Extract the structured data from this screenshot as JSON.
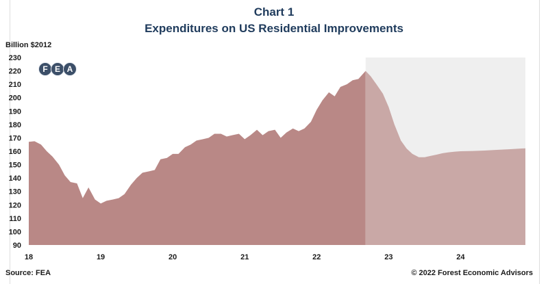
{
  "title": "Chart 1",
  "subtitle": "Expenditures on US Residential Improvements",
  "unit_label": "Billion $2012",
  "source": "Source: FEA",
  "copyright": "© 2022 Forest Economic Advisors",
  "logo": {
    "letters": [
      "F",
      "E",
      "A"
    ]
  },
  "colors": {
    "historical_area": "#b98886",
    "forecast_area": "#c9a8a6",
    "forecast_shade": "#efefef",
    "title": "#1f3b5c",
    "logo": "#3c4f68"
  },
  "chart_data": {
    "type": "area",
    "title": "Expenditures on US Residential Improvements",
    "ylabel": "Billion $2012",
    "ylim": [
      90,
      230
    ],
    "yticks": [
      90,
      100,
      110,
      120,
      130,
      140,
      150,
      160,
      170,
      180,
      190,
      200,
      210,
      220,
      230
    ],
    "xlim": [
      2018.0,
      2024.9
    ],
    "xticks": [
      {
        "value": 2018,
        "label": "18"
      },
      {
        "value": 2019,
        "label": "19"
      },
      {
        "value": 2020,
        "label": "20"
      },
      {
        "value": 2021,
        "label": "21"
      },
      {
        "value": 2022,
        "label": "22"
      },
      {
        "value": 2023,
        "label": "23"
      },
      {
        "value": 2024,
        "label": "24"
      }
    ],
    "forecast_start": 2022.68,
    "grid": false,
    "series": [
      {
        "x": [
          2018.0,
          2018.08,
          2018.17,
          2018.25,
          2018.33,
          2018.42,
          2018.5,
          2018.58,
          2018.67,
          2018.75,
          2018.83,
          2018.92,
          2019.0,
          2019.08,
          2019.17,
          2019.25,
          2019.33,
          2019.42,
          2019.5,
          2019.58,
          2019.67,
          2019.75,
          2019.83,
          2019.92,
          2020.0,
          2020.08,
          2020.17,
          2020.25,
          2020.33,
          2020.42,
          2020.5,
          2020.58,
          2020.67,
          2020.75,
          2020.83,
          2020.92,
          2021.0,
          2021.08,
          2021.17,
          2021.25,
          2021.33,
          2021.42,
          2021.5,
          2021.58,
          2021.67,
          2021.75,
          2021.83,
          2021.92,
          2022.0,
          2022.08,
          2022.17,
          2022.25,
          2022.33,
          2022.42,
          2022.5,
          2022.58,
          2022.68,
          2022.75,
          2022.83,
          2022.92,
          2023.0,
          2023.08,
          2023.17,
          2023.25,
          2023.33,
          2023.42,
          2023.5,
          2023.58,
          2023.67,
          2023.75,
          2023.83,
          2023.92,
          2024.0,
          2024.17,
          2024.33,
          2024.5,
          2024.67,
          2024.83,
          2024.9
        ],
        "values": [
          167,
          167.5,
          165,
          160,
          156,
          150,
          142,
          137,
          136,
          125,
          133,
          124,
          121,
          123,
          124,
          125,
          128,
          135,
          140,
          144,
          145,
          146,
          154,
          155,
          158,
          158,
          163,
          165,
          168,
          169,
          170,
          173,
          173,
          171,
          172,
          173,
          169,
          172,
          176,
          172,
          175,
          176,
          170,
          174,
          177,
          175,
          177,
          182,
          191,
          198,
          204,
          201,
          208,
          210,
          213,
          214,
          220,
          216,
          210,
          203,
          193,
          180,
          168,
          162,
          158,
          155.5,
          155.5,
          156.5,
          157.5,
          158.5,
          159.2,
          159.7,
          160,
          160.2,
          160.5,
          161,
          161.5,
          162,
          162.2
        ]
      }
    ]
  }
}
